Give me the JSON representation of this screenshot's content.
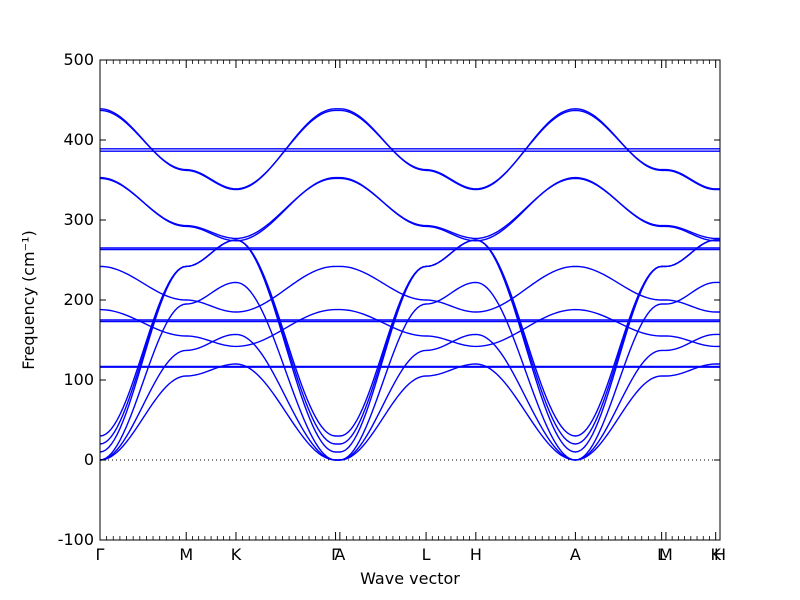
{
  "chart_data": {
    "type": "line",
    "title": "",
    "xlabel": "Wave vector",
    "ylabel": "Frequency (cm⁻¹)",
    "ylim": [
      -100,
      500
    ],
    "yticks": [
      -100,
      0,
      100,
      200,
      300,
      400,
      500
    ],
    "zero_line": true,
    "grid": false,
    "legend": "none",
    "line_color": "#0000ff",
    "xticks": [
      {
        "label": "Γ",
        "pos": 0.0
      },
      {
        "label": "M",
        "pos": 1.0
      },
      {
        "label": "K",
        "pos": 1.577
      },
      {
        "label": "Γ",
        "pos": 2.732
      },
      {
        "label": "A",
        "pos": 2.782
      },
      {
        "label": "L",
        "pos": 3.782
      },
      {
        "label": "H",
        "pos": 4.359
      },
      {
        "label": "A",
        "pos": 5.514
      },
      {
        "label": "L",
        "pos": 6.514
      },
      {
        "label": "M",
        "pos": 6.564
      },
      {
        "label": "K",
        "pos": 7.141
      },
      {
        "label": "H",
        "pos": 7.191
      }
    ],
    "series": [
      {
        "values": [
          [
            0,
            0
          ],
          [
            1,
            105
          ],
          [
            1.577,
            120
          ],
          [
            2.732,
            0
          ],
          [
            2.782,
            0
          ],
          [
            3.782,
            105
          ],
          [
            4.359,
            120
          ],
          [
            5.514,
            0
          ],
          [
            6.514,
            105
          ],
          [
            6.564,
            105
          ],
          [
            7.141,
            120
          ],
          [
            7.191,
            120
          ]
        ]
      },
      {
        "values": [
          [
            0,
            0
          ],
          [
            1,
            137
          ],
          [
            1.577,
            157
          ],
          [
            2.732,
            0
          ],
          [
            2.782,
            0
          ],
          [
            3.782,
            137
          ],
          [
            4.359,
            157
          ],
          [
            5.514,
            0
          ],
          [
            6.514,
            137
          ],
          [
            6.564,
            137
          ],
          [
            7.141,
            157
          ],
          [
            7.191,
            157
          ]
        ]
      },
      {
        "values": [
          [
            0,
            0
          ],
          [
            1,
            195
          ],
          [
            1.577,
            222
          ],
          [
            2.732,
            0
          ],
          [
            2.782,
            0
          ],
          [
            3.782,
            195
          ],
          [
            4.359,
            222
          ],
          [
            5.514,
            0
          ],
          [
            6.514,
            195
          ],
          [
            6.564,
            195
          ],
          [
            7.141,
            222
          ],
          [
            7.191,
            222
          ]
        ]
      },
      {
        "values": [
          [
            0,
            10
          ],
          [
            1,
            242
          ],
          [
            1.577,
            275
          ],
          [
            2.732,
            10
          ],
          [
            2.782,
            10
          ],
          [
            3.782,
            242
          ],
          [
            4.359,
            275
          ],
          [
            5.514,
            10
          ],
          [
            6.514,
            242
          ],
          [
            6.564,
            242
          ],
          [
            7.141,
            275
          ],
          [
            7.191,
            275
          ]
        ]
      },
      {
        "values": [
          [
            0,
            20
          ],
          [
            1,
            242
          ],
          [
            1.577,
            275
          ],
          [
            2.732,
            20
          ],
          [
            2.782,
            20
          ],
          [
            3.782,
            242
          ],
          [
            4.359,
            275
          ],
          [
            5.514,
            20
          ],
          [
            6.514,
            242
          ],
          [
            6.564,
            242
          ],
          [
            7.141,
            275
          ],
          [
            7.191,
            275
          ]
        ]
      },
      {
        "values": [
          [
            0,
            30
          ],
          [
            1,
            242
          ],
          [
            1.577,
            275
          ],
          [
            2.732,
            30
          ],
          [
            2.782,
            30
          ],
          [
            3.782,
            242
          ],
          [
            4.359,
            275
          ],
          [
            5.514,
            30
          ],
          [
            6.514,
            242
          ],
          [
            6.564,
            242
          ],
          [
            7.141,
            275
          ],
          [
            7.191,
            275
          ]
        ]
      },
      {
        "values": [
          [
            0,
            116
          ],
          [
            7.191,
            116
          ]
        ]
      },
      {
        "values": [
          [
            0,
            117
          ],
          [
            7.191,
            117
          ]
        ]
      },
      {
        "values": [
          [
            0,
            173
          ],
          [
            7.191,
            173
          ]
        ]
      },
      {
        "values": [
          [
            0,
            175
          ],
          [
            7.191,
            175
          ]
        ]
      },
      {
        "values": [
          [
            0,
            188
          ],
          [
            1,
            155
          ],
          [
            1.577,
            142
          ],
          [
            2.732,
            188
          ],
          [
            2.782,
            188
          ],
          [
            3.782,
            155
          ],
          [
            4.359,
            142
          ],
          [
            5.514,
            188
          ],
          [
            6.514,
            155
          ],
          [
            6.564,
            155
          ],
          [
            7.141,
            142
          ],
          [
            7.191,
            142
          ]
        ]
      },
      {
        "values": [
          [
            0,
            242
          ],
          [
            1,
            200
          ],
          [
            1.577,
            185
          ],
          [
            2.732,
            242
          ],
          [
            2.782,
            242
          ],
          [
            3.782,
            200
          ],
          [
            4.359,
            185
          ],
          [
            5.514,
            242
          ],
          [
            6.514,
            200
          ],
          [
            6.564,
            200
          ],
          [
            7.141,
            185
          ],
          [
            7.191,
            185
          ]
        ]
      },
      {
        "values": [
          [
            0,
            263
          ],
          [
            7.191,
            263
          ]
        ]
      },
      {
        "values": [
          [
            0,
            265
          ],
          [
            7.191,
            265
          ]
        ]
      },
      {
        "values": [
          [
            0,
            352
          ],
          [
            1,
            293
          ],
          [
            1.577,
            277
          ],
          [
            2.732,
            352
          ],
          [
            2.782,
            352
          ],
          [
            3.782,
            293
          ],
          [
            4.359,
            277
          ],
          [
            5.514,
            352
          ],
          [
            6.514,
            293
          ],
          [
            6.564,
            293
          ],
          [
            7.141,
            277
          ],
          [
            7.191,
            277
          ]
        ]
      },
      {
        "values": [
          [
            0,
            353
          ],
          [
            1,
            292
          ],
          [
            1.577,
            274
          ],
          [
            2.732,
            353
          ],
          [
            2.782,
            353
          ],
          [
            3.782,
            292
          ],
          [
            4.359,
            274
          ],
          [
            5.514,
            353
          ],
          [
            6.514,
            292
          ],
          [
            6.564,
            292
          ],
          [
            7.141,
            274
          ],
          [
            7.191,
            274
          ]
        ]
      },
      {
        "values": [
          [
            0,
            386
          ],
          [
            7.191,
            386
          ]
        ]
      },
      {
        "values": [
          [
            0,
            389
          ],
          [
            7.191,
            389
          ]
        ]
      },
      {
        "values": [
          [
            0,
            437
          ],
          [
            1,
            363
          ],
          [
            1.577,
            339
          ],
          [
            2.732,
            437
          ],
          [
            2.782,
            437
          ],
          [
            3.782,
            363
          ],
          [
            4.359,
            339
          ],
          [
            5.514,
            437
          ],
          [
            6.514,
            363
          ],
          [
            6.564,
            363
          ],
          [
            7.141,
            339
          ],
          [
            7.191,
            339
          ]
        ]
      },
      {
        "values": [
          [
            0,
            439
          ],
          [
            1,
            362
          ],
          [
            1.577,
            338
          ],
          [
            2.732,
            439
          ],
          [
            2.782,
            439
          ],
          [
            3.782,
            362
          ],
          [
            4.359,
            338
          ],
          [
            5.514,
            439
          ],
          [
            6.514,
            362
          ],
          [
            6.564,
            362
          ],
          [
            7.141,
            338
          ],
          [
            7.191,
            338
          ]
        ]
      }
    ]
  }
}
